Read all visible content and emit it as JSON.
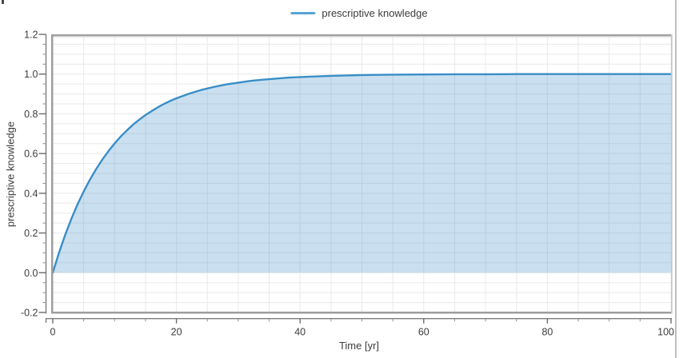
{
  "window": {
    "background": "#ffffff",
    "divider_color": "#bfbfbf",
    "edge_mark_color": "#4a4a4a"
  },
  "legend": {
    "label": "prescriptive knowledge",
    "swatch_color": "#58a3d4"
  },
  "chart_data": {
    "type": "area",
    "title": "",
    "xlabel": "Time [yr]",
    "ylabel": "prescriptive knowledge",
    "xlim": [
      0,
      100
    ],
    "ylim": [
      -0.2,
      1.2
    ],
    "x_major_ticks": [
      0,
      20,
      40,
      60,
      80,
      100
    ],
    "x_tick_labels": [
      "0",
      "20",
      "40",
      "60",
      "80",
      "100"
    ],
    "x_minor_step": 5,
    "y_major_ticks": [
      -0.2,
      0,
      0.2,
      0.4,
      0.6,
      0.8,
      1,
      1.2
    ],
    "y_tick_labels": [
      "-0.2",
      "0.0",
      "0.2",
      "0.4",
      "0.6",
      "0.8",
      "1.0",
      "1.2"
    ],
    "y_minor_step": 0.05,
    "grid": true,
    "legend_position": "top-center",
    "series": [
      {
        "name": "prescriptive knowledge",
        "color": "#3a8ec6",
        "fill_color": "rgba(58,142,198,0.27)",
        "fill_base": 0,
        "x": [
          0,
          1,
          2,
          3,
          4,
          5,
          6,
          7,
          8,
          9,
          10,
          11,
          12,
          13,
          14,
          15,
          16,
          17,
          18,
          19,
          20,
          22,
          24,
          26,
          28,
          30,
          32,
          34,
          36,
          38,
          40,
          45,
          50,
          55,
          60,
          65,
          70,
          75,
          80,
          85,
          90,
          95,
          100
        ],
        "y": [
          0,
          0.1,
          0.19,
          0.271,
          0.344,
          0.409,
          0.468,
          0.521,
          0.569,
          0.612,
          0.651,
          0.686,
          0.717,
          0.746,
          0.771,
          0.794,
          0.814,
          0.833,
          0.85,
          0.865,
          0.878,
          0.901,
          0.92,
          0.935,
          0.948,
          0.957,
          0.966,
          0.972,
          0.977,
          0.982,
          0.985,
          0.991,
          0.995,
          0.997,
          0.998,
          0.999,
          0.999,
          1,
          1,
          1,
          1,
          1,
          1
        ]
      }
    ]
  },
  "axis_style": {
    "grid_color": "#e9e9e9",
    "spine_color": "#9e9e9e",
    "spine_top_color": "#a0a0a0",
    "spine_top_highlight": "#d2d2d2",
    "spine_right_color": "#c6c6c6",
    "ruler_color": "#7d7d7d",
    "major_tick_color": "#6b6b6b",
    "minor_tick_color": "#8f8f8f",
    "label_color": "#3c3c3c"
  }
}
